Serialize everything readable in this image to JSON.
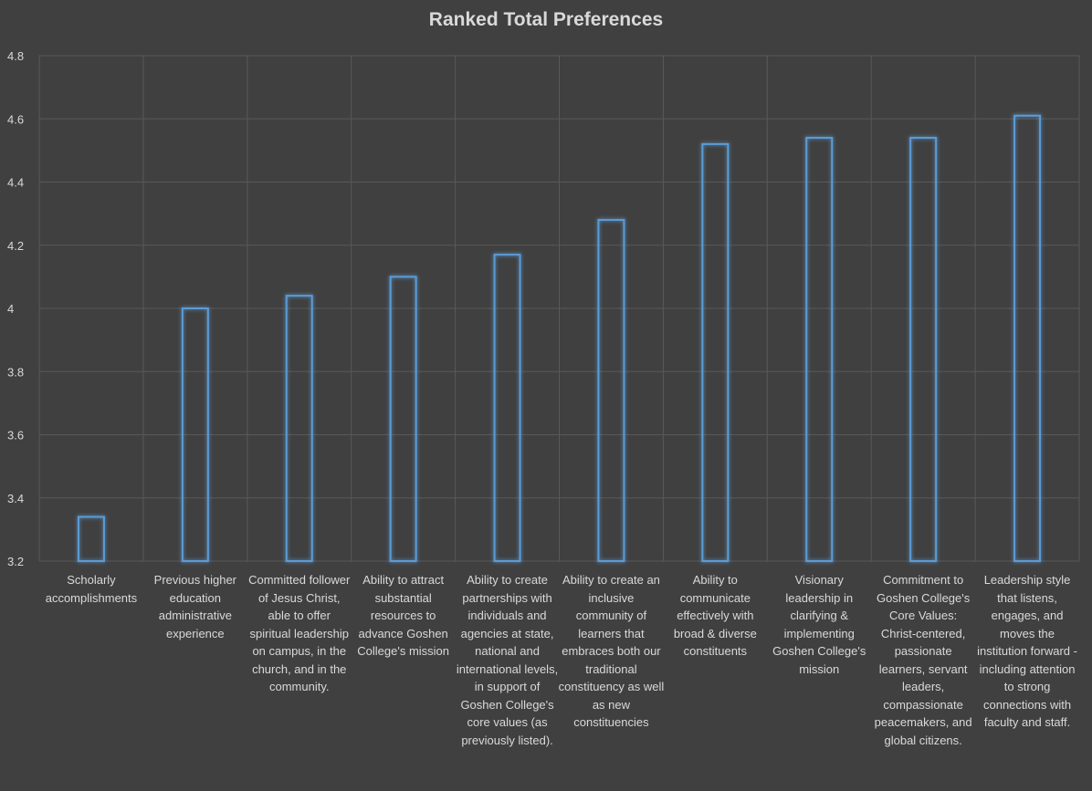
{
  "chart_data": {
    "type": "bar",
    "title": "Ranked Total Preferences",
    "xlabel": "",
    "ylabel": "",
    "ylim": [
      3.2,
      4.8
    ],
    "yticks": [
      "3.2",
      "3.4",
      "3.6",
      "3.8",
      "4",
      "4.2",
      "4.4",
      "4.6",
      "4.8"
    ],
    "grid": true,
    "bar_style": "outline",
    "colors": {
      "background": "#404040",
      "bar_outline": "#5b9bd5",
      "grid": "#595959",
      "text": "#d9d9d9"
    },
    "categories": [
      "Scholarly accomplishments",
      "Previous higher education administrative experience",
      "Committed follower of Jesus Christ, able to offer spiritual leadership on campus, in the church, and in the community.",
      "Ability to attract substantial resources to advance Goshen College's mission",
      "Ability to create partnerships with individuals and agencies at state, national and international levels, in support of Goshen College's core values (as previously listed).",
      "Ability to create an inclusive community of learners that embraces both our traditional constituency as well as new constituencies",
      "Ability to communicate effectively with broad & diverse constituents",
      "Visionary leadership in clarifying & implementing Goshen College's mission",
      "Commitment to Goshen College's Core Values: Christ-centered, passionate learners, servant leaders, compassionate peacemakers, and global citizens.",
      "Leadership style that listens, engages, and moves the institution forward - including attention to strong connections with faculty and staff."
    ],
    "values": [
      3.34,
      4.0,
      4.04,
      4.1,
      4.17,
      4.28,
      4.52,
      4.54,
      4.54,
      4.61
    ]
  }
}
